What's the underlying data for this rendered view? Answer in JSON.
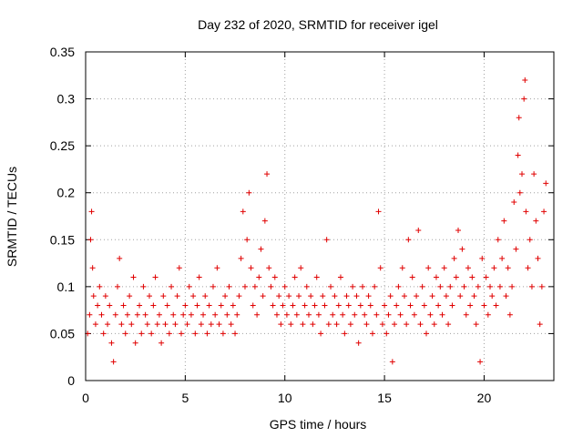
{
  "chart_data": {
    "type": "scatter",
    "title": "Day 232 of 2020, SRMTID for receiver igel",
    "xlabel": "GPS time / hours",
    "ylabel": "SRMTID / TECUs",
    "xlim": [
      0,
      23.5
    ],
    "ylim": [
      0,
      0.35
    ],
    "xticks": [
      0,
      5,
      10,
      15,
      20
    ],
    "xtick_labels": [
      "0",
      "5",
      "10",
      "15",
      "20"
    ],
    "yticks": [
      0,
      0.05,
      0.1,
      0.15,
      0.2,
      0.25,
      0.3,
      0.35
    ],
    "ytick_labels": [
      "0",
      "0.05",
      "0.1",
      "0.15",
      "0.2",
      "0.25",
      "0.3",
      "0.35"
    ],
    "grid": true,
    "marker": "+",
    "color": "#e00000",
    "series": [
      {
        "name": "SRMTID",
        "points": [
          [
            0.1,
            0.05
          ],
          [
            0.2,
            0.07
          ],
          [
            0.25,
            0.15
          ],
          [
            0.3,
            0.18
          ],
          [
            0.35,
            0.12
          ],
          [
            0.4,
            0.09
          ],
          [
            0.5,
            0.06
          ],
          [
            0.6,
            0.08
          ],
          [
            0.7,
            0.1
          ],
          [
            0.8,
            0.07
          ],
          [
            0.9,
            0.05
          ],
          [
            1.0,
            0.09
          ],
          [
            1.1,
            0.06
          ],
          [
            1.2,
            0.08
          ],
          [
            1.3,
            0.04
          ],
          [
            1.4,
            0.02
          ],
          [
            1.5,
            0.07
          ],
          [
            1.6,
            0.1
          ],
          [
            1.7,
            0.13
          ],
          [
            1.8,
            0.06
          ],
          [
            1.9,
            0.08
          ],
          [
            2.0,
            0.05
          ],
          [
            2.1,
            0.07
          ],
          [
            2.2,
            0.09
          ],
          [
            2.3,
            0.06
          ],
          [
            2.4,
            0.11
          ],
          [
            2.5,
            0.04
          ],
          [
            2.6,
            0.07
          ],
          [
            2.7,
            0.08
          ],
          [
            2.8,
            0.05
          ],
          [
            2.9,
            0.1
          ],
          [
            3.0,
            0.07
          ],
          [
            3.1,
            0.06
          ],
          [
            3.2,
            0.09
          ],
          [
            3.3,
            0.05
          ],
          [
            3.4,
            0.08
          ],
          [
            3.5,
            0.11
          ],
          [
            3.6,
            0.06
          ],
          [
            3.7,
            0.07
          ],
          [
            3.8,
            0.04
          ],
          [
            3.9,
            0.09
          ],
          [
            4.0,
            0.06
          ],
          [
            4.1,
            0.08
          ],
          [
            4.2,
            0.05
          ],
          [
            4.3,
            0.1
          ],
          [
            4.4,
            0.07
          ],
          [
            4.5,
            0.06
          ],
          [
            4.6,
            0.09
          ],
          [
            4.7,
            0.12
          ],
          [
            4.8,
            0.05
          ],
          [
            4.9,
            0.07
          ],
          [
            5.0,
            0.08
          ],
          [
            5.1,
            0.06
          ],
          [
            5.2,
            0.1
          ],
          [
            5.3,
            0.07
          ],
          [
            5.4,
            0.09
          ],
          [
            5.5,
            0.05
          ],
          [
            5.6,
            0.08
          ],
          [
            5.7,
            0.11
          ],
          [
            5.8,
            0.06
          ],
          [
            5.9,
            0.07
          ],
          [
            6.0,
            0.09
          ],
          [
            6.1,
            0.05
          ],
          [
            6.2,
            0.08
          ],
          [
            6.3,
            0.06
          ],
          [
            6.4,
            0.1
          ],
          [
            6.5,
            0.07
          ],
          [
            6.6,
            0.12
          ],
          [
            6.7,
            0.06
          ],
          [
            6.8,
            0.08
          ],
          [
            6.9,
            0.05
          ],
          [
            7.0,
            0.09
          ],
          [
            7.1,
            0.07
          ],
          [
            7.2,
            0.1
          ],
          [
            7.3,
            0.06
          ],
          [
            7.4,
            0.08
          ],
          [
            7.5,
            0.05
          ],
          [
            7.6,
            0.07
          ],
          [
            7.7,
            0.09
          ],
          [
            7.8,
            0.13
          ],
          [
            7.9,
            0.18
          ],
          [
            8.0,
            0.1
          ],
          [
            8.1,
            0.15
          ],
          [
            8.2,
            0.2
          ],
          [
            8.3,
            0.12
          ],
          [
            8.4,
            0.08
          ],
          [
            8.5,
            0.1
          ],
          [
            8.6,
            0.07
          ],
          [
            8.7,
            0.11
          ],
          [
            8.8,
            0.14
          ],
          [
            8.9,
            0.09
          ],
          [
            9.0,
            0.17
          ],
          [
            9.1,
            0.22
          ],
          [
            9.2,
            0.12
          ],
          [
            9.3,
            0.1
          ],
          [
            9.4,
            0.08
          ],
          [
            9.5,
            0.11
          ],
          [
            9.6,
            0.07
          ],
          [
            9.7,
            0.09
          ],
          [
            9.8,
            0.06
          ],
          [
            9.9,
            0.08
          ],
          [
            10.0,
            0.1
          ],
          [
            10.1,
            0.07
          ],
          [
            10.2,
            0.09
          ],
          [
            10.3,
            0.06
          ],
          [
            10.4,
            0.08
          ],
          [
            10.5,
            0.11
          ],
          [
            10.6,
            0.07
          ],
          [
            10.7,
            0.09
          ],
          [
            10.8,
            0.12
          ],
          [
            10.9,
            0.06
          ],
          [
            11.0,
            0.08
          ],
          [
            11.1,
            0.1
          ],
          [
            11.2,
            0.07
          ],
          [
            11.3,
            0.09
          ],
          [
            11.4,
            0.06
          ],
          [
            11.5,
            0.08
          ],
          [
            11.6,
            0.11
          ],
          [
            11.7,
            0.07
          ],
          [
            11.8,
            0.05
          ],
          [
            11.9,
            0.09
          ],
          [
            12.0,
            0.08
          ],
          [
            12.1,
            0.15
          ],
          [
            12.2,
            0.06
          ],
          [
            12.3,
            0.1
          ],
          [
            12.4,
            0.07
          ],
          [
            12.5,
            0.09
          ],
          [
            12.6,
            0.06
          ],
          [
            12.7,
            0.08
          ],
          [
            12.8,
            0.11
          ],
          [
            12.9,
            0.07
          ],
          [
            13.0,
            0.05
          ],
          [
            13.1,
            0.09
          ],
          [
            13.2,
            0.08
          ],
          [
            13.3,
            0.06
          ],
          [
            13.4,
            0.1
          ],
          [
            13.5,
            0.07
          ],
          [
            13.6,
            0.09
          ],
          [
            13.7,
            0.04
          ],
          [
            13.8,
            0.08
          ],
          [
            13.9,
            0.1
          ],
          [
            14.0,
            0.07
          ],
          [
            14.1,
            0.06
          ],
          [
            14.2,
            0.09
          ],
          [
            14.3,
            0.08
          ],
          [
            14.4,
            0.05
          ],
          [
            14.5,
            0.1
          ],
          [
            14.6,
            0.07
          ],
          [
            14.7,
            0.18
          ],
          [
            14.8,
            0.12
          ],
          [
            14.9,
            0.06
          ],
          [
            15.0,
            0.08
          ],
          [
            15.1,
            0.05
          ],
          [
            15.2,
            0.07
          ],
          [
            15.3,
            0.09
          ],
          [
            15.4,
            0.02
          ],
          [
            15.5,
            0.06
          ],
          [
            15.6,
            0.08
          ],
          [
            15.7,
            0.1
          ],
          [
            15.8,
            0.07
          ],
          [
            15.9,
            0.12
          ],
          [
            16.0,
            0.09
          ],
          [
            16.1,
            0.06
          ],
          [
            16.2,
            0.15
          ],
          [
            16.3,
            0.08
          ],
          [
            16.4,
            0.11
          ],
          [
            16.5,
            0.07
          ],
          [
            16.6,
            0.09
          ],
          [
            16.7,
            0.16
          ],
          [
            16.8,
            0.06
          ],
          [
            16.9,
            0.1
          ],
          [
            17.0,
            0.08
          ],
          [
            17.1,
            0.05
          ],
          [
            17.2,
            0.12
          ],
          [
            17.3,
            0.07
          ],
          [
            17.4,
            0.09
          ],
          [
            17.5,
            0.06
          ],
          [
            17.6,
            0.11
          ],
          [
            17.7,
            0.08
          ],
          [
            17.8,
            0.1
          ],
          [
            17.9,
            0.07
          ],
          [
            18.0,
            0.12
          ],
          [
            18.1,
            0.09
          ],
          [
            18.2,
            0.06
          ],
          [
            18.3,
            0.1
          ],
          [
            18.4,
            0.08
          ],
          [
            18.5,
            0.13
          ],
          [
            18.6,
            0.11
          ],
          [
            18.7,
            0.16
          ],
          [
            18.8,
            0.09
          ],
          [
            18.9,
            0.14
          ],
          [
            19.0,
            0.1
          ],
          [
            19.1,
            0.07
          ],
          [
            19.2,
            0.12
          ],
          [
            19.3,
            0.08
          ],
          [
            19.4,
            0.11
          ],
          [
            19.5,
            0.09
          ],
          [
            19.6,
            0.06
          ],
          [
            19.7,
            0.1
          ],
          [
            19.8,
            0.02
          ],
          [
            19.9,
            0.13
          ],
          [
            20.0,
            0.08
          ],
          [
            20.1,
            0.11
          ],
          [
            20.2,
            0.07
          ],
          [
            20.3,
            0.1
          ],
          [
            20.4,
            0.09
          ],
          [
            20.5,
            0.12
          ],
          [
            20.6,
            0.08
          ],
          [
            20.7,
            0.15
          ],
          [
            20.8,
            0.1
          ],
          [
            20.9,
            0.13
          ],
          [
            21.0,
            0.17
          ],
          [
            21.1,
            0.09
          ],
          [
            21.2,
            0.12
          ],
          [
            21.3,
            0.07
          ],
          [
            21.4,
            0.1
          ],
          [
            21.5,
            0.19
          ],
          [
            21.6,
            0.14
          ],
          [
            21.7,
            0.24
          ],
          [
            21.75,
            0.28
          ],
          [
            21.8,
            0.2
          ],
          [
            21.9,
            0.22
          ],
          [
            22.0,
            0.3
          ],
          [
            22.05,
            0.32
          ],
          [
            22.1,
            0.18
          ],
          [
            22.2,
            0.12
          ],
          [
            22.3,
            0.15
          ],
          [
            22.4,
            0.1
          ],
          [
            22.5,
            0.22
          ],
          [
            22.6,
            0.17
          ],
          [
            22.7,
            0.13
          ],
          [
            22.8,
            0.06
          ],
          [
            22.9,
            0.1
          ],
          [
            23.0,
            0.18
          ],
          [
            23.1,
            0.21
          ]
        ]
      }
    ]
  }
}
